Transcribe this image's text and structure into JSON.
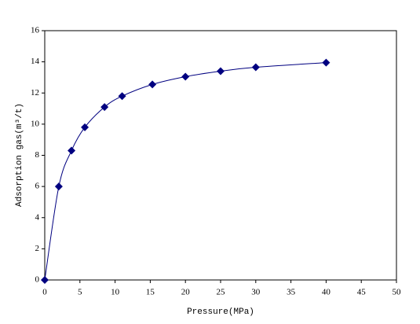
{
  "chart_data": {
    "type": "scatter",
    "x_label": "Pressure(MPa)",
    "y_label": "Adsorption gas(m³/t)",
    "series": [
      {
        "color": "#000080",
        "x": [
          0,
          2,
          3.8,
          5.7,
          8.5,
          11,
          15.3,
          20,
          25,
          30,
          40
        ],
        "values": [
          0,
          6,
          8.3,
          9.8,
          11.1,
          11.8,
          12.55,
          13.05,
          13.4,
          13.65,
          13.95
        ]
      }
    ],
    "xlim": [
      0,
      50
    ],
    "xticks": [
      0,
      5,
      10,
      15,
      20,
      25,
      30,
      35,
      40,
      45,
      50
    ],
    "ylim": [
      0,
      16
    ],
    "yticks": [
      0,
      2,
      4,
      6,
      8,
      10,
      12,
      14,
      16
    ],
    "grid": false,
    "smooth": true
  }
}
